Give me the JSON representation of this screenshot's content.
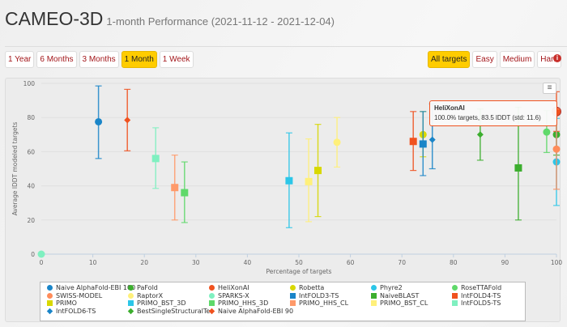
{
  "header": {
    "title": "CAMEO-3D",
    "subtitle": "1-month Performance (2021-11-12 - 2021-12-04)"
  },
  "period_buttons": [
    {
      "label": "1 Year",
      "active": false
    },
    {
      "label": "6 Months",
      "active": false
    },
    {
      "label": "3 Months",
      "active": false
    },
    {
      "label": "1 Month",
      "active": true
    },
    {
      "label": "1 Week",
      "active": false
    }
  ],
  "difficulty_buttons": [
    {
      "label": "All targets",
      "active": true
    },
    {
      "label": "Easy",
      "active": false
    },
    {
      "label": "Medium",
      "active": false
    },
    {
      "label": "Hard",
      "active": false
    }
  ],
  "info_icon": "info-circle-icon",
  "menu_icon": "hamburger-icon",
  "tooltip": {
    "title": "HeliXonAI",
    "text": "100.0% targets, 83.5 lDDT (std: 11.6)"
  },
  "chart_data": {
    "type": "scatter",
    "xlabel": "Percentage of targets",
    "ylabel": "Average lDDT modeled targets",
    "xlim": [
      0,
      100
    ],
    "ylim": [
      0,
      100
    ],
    "xticks": [
      0,
      10,
      20,
      30,
      40,
      50,
      60,
      70,
      80,
      90,
      100
    ],
    "yticks": [
      0,
      20,
      40,
      60,
      80,
      100
    ],
    "grid": "horizontal",
    "legend_position": "bottom",
    "series": [
      {
        "name": "Naive AlphaFold-EBI 100",
        "color": "#1a85c8",
        "marker": "circle",
        "x": 11.1,
        "y": 77.5,
        "low": 56,
        "high": 98.5
      },
      {
        "name": "PaFold",
        "color": "#3cae2e",
        "marker": "circle",
        "x": 100,
        "y": 70,
        "low": 58,
        "high": 82
      },
      {
        "name": "HeliXonAI",
        "color": "#f0521f",
        "marker": "circle",
        "x": 100,
        "y": 83.5,
        "low": 71.9,
        "high": 95.1
      },
      {
        "name": "Robetta",
        "color": "#d8d800",
        "marker": "circle",
        "x": 74.1,
        "y": 70,
        "low": 57,
        "high": 83.5
      },
      {
        "name": "Phyre2",
        "color": "#2cc6e8",
        "marker": "circle",
        "x": 100,
        "y": 54,
        "low": 28.5,
        "high": 79.5
      },
      {
        "name": "RoseTTAFold",
        "color": "#5fd96a",
        "marker": "circle",
        "x": 98.1,
        "y": 71.5,
        "low": 59.5,
        "high": 84
      },
      {
        "name": "SWISS-MODEL",
        "color": "#ff8c5a",
        "marker": "circle",
        "x": 100,
        "y": 61.5,
        "low": 38,
        "high": 85
      },
      {
        "name": "RaptorX",
        "color": "#fff07a",
        "marker": "circle",
        "x": 57.4,
        "y": 65.5,
        "low": 51,
        "high": 80
      },
      {
        "name": "SPARKS-X",
        "color": "#7ff0c0",
        "marker": "circle",
        "x": 0,
        "y": 0,
        "low": null,
        "high": null
      },
      {
        "name": "IntFOLD3-TS",
        "color": "#1a85c8",
        "marker": "square",
        "x": 74.1,
        "y": 64.5,
        "low": 46,
        "high": 83.5
      },
      {
        "name": "NaiveBLAST",
        "color": "#3cae2e",
        "marker": "square",
        "x": 92.6,
        "y": 50.5,
        "low": 20,
        "high": 86
      },
      {
        "name": "IntFOLD4-TS",
        "color": "#f0521f",
        "marker": "square",
        "x": 72.2,
        "y": 66,
        "low": 49,
        "high": 83.5
      },
      {
        "name": "PRIMO",
        "color": "#d8d800",
        "marker": "square",
        "x": 53.7,
        "y": 49,
        "low": 22,
        "high": 76
      },
      {
        "name": "PRIMO_BST_3D",
        "color": "#2cc6e8",
        "marker": "square",
        "x": 48.1,
        "y": 43,
        "low": 15.5,
        "high": 71
      },
      {
        "name": "PRIMO_HHS_3D",
        "color": "#5fd96a",
        "marker": "square",
        "x": 27.8,
        "y": 36,
        "low": 18.5,
        "high": 54
      },
      {
        "name": "PRIMO_HHS_CL",
        "color": "#ff9a6a",
        "marker": "square",
        "x": 25.9,
        "y": 39,
        "low": 20,
        "high": 58
      },
      {
        "name": "PRIMO_BST_CL",
        "color": "#fff07a",
        "marker": "square",
        "x": 51.9,
        "y": 42.5,
        "low": 19,
        "high": 67.5
      },
      {
        "name": "IntFOLD5-TS",
        "color": "#7ff0c0",
        "marker": "square",
        "x": 22.2,
        "y": 56,
        "low": 38.5,
        "high": 74
      },
      {
        "name": "IntFOLD6-TS",
        "color": "#1a85c8",
        "marker": "diamond",
        "x": 75.9,
        "y": 67,
        "low": 50,
        "high": 88
      },
      {
        "name": "BestSingleStructuralTe.",
        "color": "#3cae2e",
        "marker": "diamond",
        "x": 85.2,
        "y": 70,
        "low": 55,
        "high": 85
      },
      {
        "name": "Naive AlphaFold-EBI 90",
        "color": "#f0521f",
        "marker": "diamond",
        "x": 16.7,
        "y": 78.5,
        "low": 60.5,
        "high": 96.5
      }
    ]
  }
}
